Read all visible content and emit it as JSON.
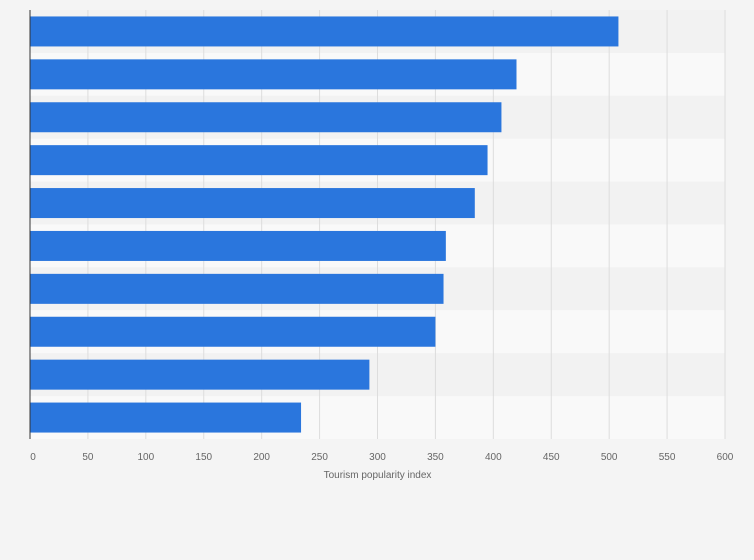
{
  "chart_data": {
    "type": "bar",
    "orientation": "horizontal",
    "categories": [
      "",
      "",
      "",
      "",
      "",
      "",
      "",
      "",
      "",
      ""
    ],
    "values": [
      508,
      420,
      407,
      395,
      384,
      359,
      357,
      350,
      293,
      234
    ],
    "title": "",
    "xlabel": "Tourism popularity index",
    "ylabel": "",
    "xlim": [
      0,
      600
    ],
    "xticks": [
      0,
      50,
      100,
      150,
      200,
      250,
      300,
      350,
      400,
      450,
      500,
      550,
      600
    ],
    "grid": true,
    "legend": "none"
  },
  "colors": {
    "bar": "#2a76dd",
    "background": "#f4f4f4",
    "band_light": "#f9f9f9",
    "band_dark": "#f2f2f2",
    "grid": "#dddddd",
    "axis": "#333333",
    "tick_label": "#666666",
    "axis_label": "#666666"
  }
}
